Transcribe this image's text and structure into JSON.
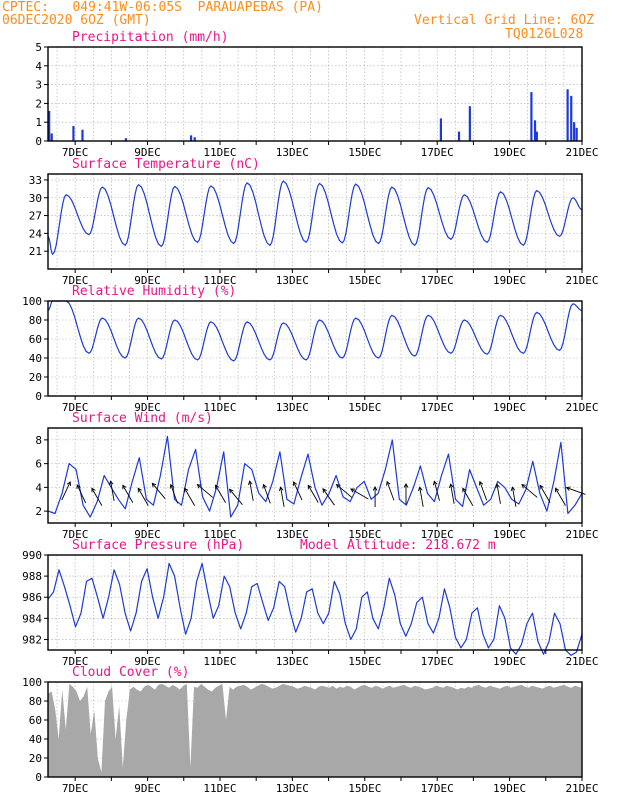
{
  "header": {
    "line1": "CPTEC:   049:41W-06:05S  PARAUAPEBAS (PA)",
    "line2": "06DEC2020 6OZ (GMT)",
    "grid_note": "Vertical Grid Line: 6OZ",
    "code": "TQ0126L028",
    "header_color": "#ff8c1a",
    "title_color": "#e8178a",
    "line_color": "#1e3ad6",
    "bar_color": "#1e3ad6",
    "cloud_color": "#a8a8a8"
  },
  "x_labels": [
    "7DEC",
    "9DEC",
    "11DEC",
    "13DEC",
    "15DEC",
    "17DEC",
    "19DEC",
    "21DEC"
  ],
  "chart_data": [
    {
      "type": "bar",
      "title": "Precipitation (mm/h)",
      "ylim": [
        0,
        5
      ],
      "yticks": [
        "0",
        "1",
        "2",
        "3",
        "4",
        "5"
      ],
      "x_start_day": 6.25,
      "x_end_day": 21,
      "spikes": [
        {
          "x": 6.28,
          "y": 1.6
        },
        {
          "x": 6.35,
          "y": 0.4
        },
        {
          "x": 6.95,
          "y": 0.8
        },
        {
          "x": 7.2,
          "y": 0.6
        },
        {
          "x": 8.4,
          "y": 0.15
        },
        {
          "x": 10.2,
          "y": 0.3
        },
        {
          "x": 10.3,
          "y": 0.2
        },
        {
          "x": 17.1,
          "y": 1.2
        },
        {
          "x": 17.6,
          "y": 0.5
        },
        {
          "x": 17.9,
          "y": 1.85
        },
        {
          "x": 19.6,
          "y": 2.6
        },
        {
          "x": 19.7,
          "y": 1.1
        },
        {
          "x": 19.75,
          "y": 0.5
        },
        {
          "x": 20.6,
          "y": 2.75
        },
        {
          "x": 20.7,
          "y": 2.4
        },
        {
          "x": 20.78,
          "y": 1.0
        },
        {
          "x": 20.85,
          "y": 0.7
        }
      ]
    },
    {
      "type": "line",
      "title": "Surface Temperature (nC)",
      "ylim": [
        18,
        34
      ],
      "yticks": [
        "21",
        "24",
        "27",
        "30",
        "33"
      ],
      "ytick_values": [
        21,
        24,
        27,
        30,
        33
      ],
      "start": 23.5,
      "maxima": [
        30.5,
        31.8,
        32.2,
        31.9,
        32.0,
        32.5,
        32.8,
        32.4,
        32.3,
        31.8,
        31.7,
        30.5,
        31.0,
        31.2,
        30.0
      ],
      "minima": [
        20.5,
        23.8,
        22.0,
        21.8,
        22.5,
        22.3,
        22.0,
        22.5,
        22.4,
        22.3,
        22.0,
        23.0,
        22.5,
        22.0,
        23.5
      ],
      "end": 28.0
    },
    {
      "type": "line",
      "title": "Relative Humidity (%)",
      "ylim": [
        0,
        100
      ],
      "yticks": [
        "0",
        "20",
        "40",
        "60",
        "80",
        "100"
      ],
      "ytick_values": [
        0,
        20,
        40,
        60,
        80,
        100
      ],
      "start": 90,
      "maxima": [
        100,
        82,
        82,
        80,
        78,
        78,
        77,
        80,
        82,
        85,
        85,
        80,
        85,
        88,
        97
      ],
      "minima": [
        100,
        45,
        40,
        39,
        38,
        37,
        38,
        38,
        40,
        40,
        42,
        45,
        44,
        45,
        48
      ],
      "end": 90
    },
    {
      "type": "line",
      "title": "Surface Wind (m/s)",
      "ylim": [
        1,
        9
      ],
      "yticks": [
        "2",
        "4",
        "6",
        "8"
      ],
      "ytick_values": [
        2,
        4,
        6,
        8
      ],
      "values": [
        2.0,
        1.8,
        3.5,
        6.0,
        5.5,
        2.5,
        1.5,
        2.8,
        5.0,
        4.0,
        3.0,
        2.2,
        4.5,
        6.5,
        3.0,
        2.5,
        5.0,
        8.3,
        3.0,
        2.5,
        5.5,
        7.2,
        3.2,
        2.0,
        4.0,
        7.0,
        1.5,
        2.5,
        6.0,
        5.5,
        3.5,
        2.8,
        4.5,
        7.0,
        3.0,
        2.6,
        4.8,
        6.8,
        4.0,
        2.5,
        3.5,
        5.0,
        3.2,
        2.8,
        4.0,
        4.5,
        3.0,
        3.5,
        5.5,
        8.0,
        3.0,
        2.5,
        4.0,
        5.8,
        3.5,
        2.8,
        5.0,
        6.8,
        3.0,
        2.4,
        5.5,
        4.0,
        2.5,
        3.0,
        4.5,
        4.0,
        3.0,
        2.6,
        3.8,
        6.2,
        3.5,
        2.0,
        4.5,
        7.8,
        1.8,
        2.5,
        3.5
      ],
      "arrow_angles_deg": [
        95,
        45,
        40,
        60,
        40,
        40,
        30,
        50,
        40,
        20,
        40,
        30,
        60,
        50,
        60,
        45,
        40,
        35,
        20,
        10,
        70,
        50,
        70,
        60,
        55,
        60,
        40,
        50,
        60,
        60,
        20,
        40,
        40,
        0
      ]
    },
    {
      "type": "line",
      "title": "Surface Pressure (hPa)",
      "annotation": "Model Altitude: 218.672 m",
      "ylim": [
        981,
        990
      ],
      "yticks": [
        "982",
        "984",
        "986",
        "988",
        "990"
      ],
      "ytick_values": [
        982,
        984,
        986,
        988,
        990
      ],
      "values": [
        985.8,
        986.5,
        988.6,
        987.0,
        985.2,
        983.2,
        984.5,
        987.5,
        987.8,
        986.0,
        984.0,
        986.0,
        988.6,
        987.2,
        984.5,
        982.8,
        984.5,
        987.5,
        988.7,
        986.0,
        984.0,
        986.0,
        989.2,
        988.0,
        985.0,
        982.5,
        984.0,
        987.5,
        989.2,
        986.5,
        984.0,
        985.2,
        988.0,
        987.0,
        984.5,
        983.0,
        984.5,
        987.0,
        987.3,
        985.5,
        983.8,
        985.0,
        987.5,
        987.0,
        984.6,
        982.7,
        984.0,
        986.5,
        986.8,
        984.5,
        983.5,
        984.5,
        987.5,
        986.3,
        983.5,
        982.0,
        983.0,
        986.0,
        986.5,
        984.0,
        983.0,
        985.0,
        987.8,
        986.2,
        983.5,
        982.3,
        983.5,
        985.5,
        986.0,
        983.5,
        982.6,
        984.0,
        986.8,
        985.0,
        982.2,
        981.2,
        982.0,
        984.5,
        985.0,
        982.5,
        981.2,
        982.0,
        985.2,
        984.0,
        981.2,
        980.6,
        981.5,
        983.5,
        984.5,
        981.8,
        980.6,
        981.8,
        984.5,
        983.5,
        981.0,
        980.5,
        980.8,
        982.5
      ]
    },
    {
      "type": "area",
      "title": "Cloud Cover (%)",
      "ylim": [
        0,
        100
      ],
      "yticks": [
        "0",
        "20",
        "40",
        "60",
        "80",
        "100"
      ],
      "ytick_values": [
        0,
        20,
        40,
        60,
        80,
        100
      ],
      "values": [
        88,
        90,
        72,
        40,
        92,
        50,
        98,
        95,
        90,
        80,
        85,
        95,
        45,
        70,
        20,
        5,
        80,
        90,
        95,
        40,
        75,
        10,
        60,
        92,
        95,
        92,
        90,
        95,
        97,
        95,
        92,
        97,
        98,
        96,
        94,
        97,
        95,
        92,
        96,
        98,
        10,
        95,
        94,
        98,
        95,
        92,
        90,
        94,
        96,
        98,
        60,
        95,
        92,
        95,
        96,
        97,
        95,
        92,
        94,
        96,
        98,
        97,
        95,
        93,
        94,
        96,
        98,
        97,
        96,
        95,
        93,
        94,
        96,
        95,
        94,
        92,
        95,
        96,
        95,
        94,
        96,
        93,
        95,
        94,
        96,
        95,
        92,
        94,
        96,
        97,
        95,
        94,
        96,
        95,
        93,
        95,
        96,
        94,
        95,
        96,
        97,
        95,
        94,
        96,
        95,
        94,
        92,
        93,
        94,
        96,
        95,
        94,
        96,
        95,
        94,
        92,
        94,
        93,
        95,
        94,
        96,
        97,
        95,
        94,
        96,
        95,
        94,
        93,
        95,
        96,
        94,
        95,
        96,
        97,
        95,
        94,
        96,
        95,
        94,
        93,
        95,
        96,
        94,
        95,
        96,
        97,
        95,
        94,
        96,
        95,
        94
      ]
    }
  ]
}
